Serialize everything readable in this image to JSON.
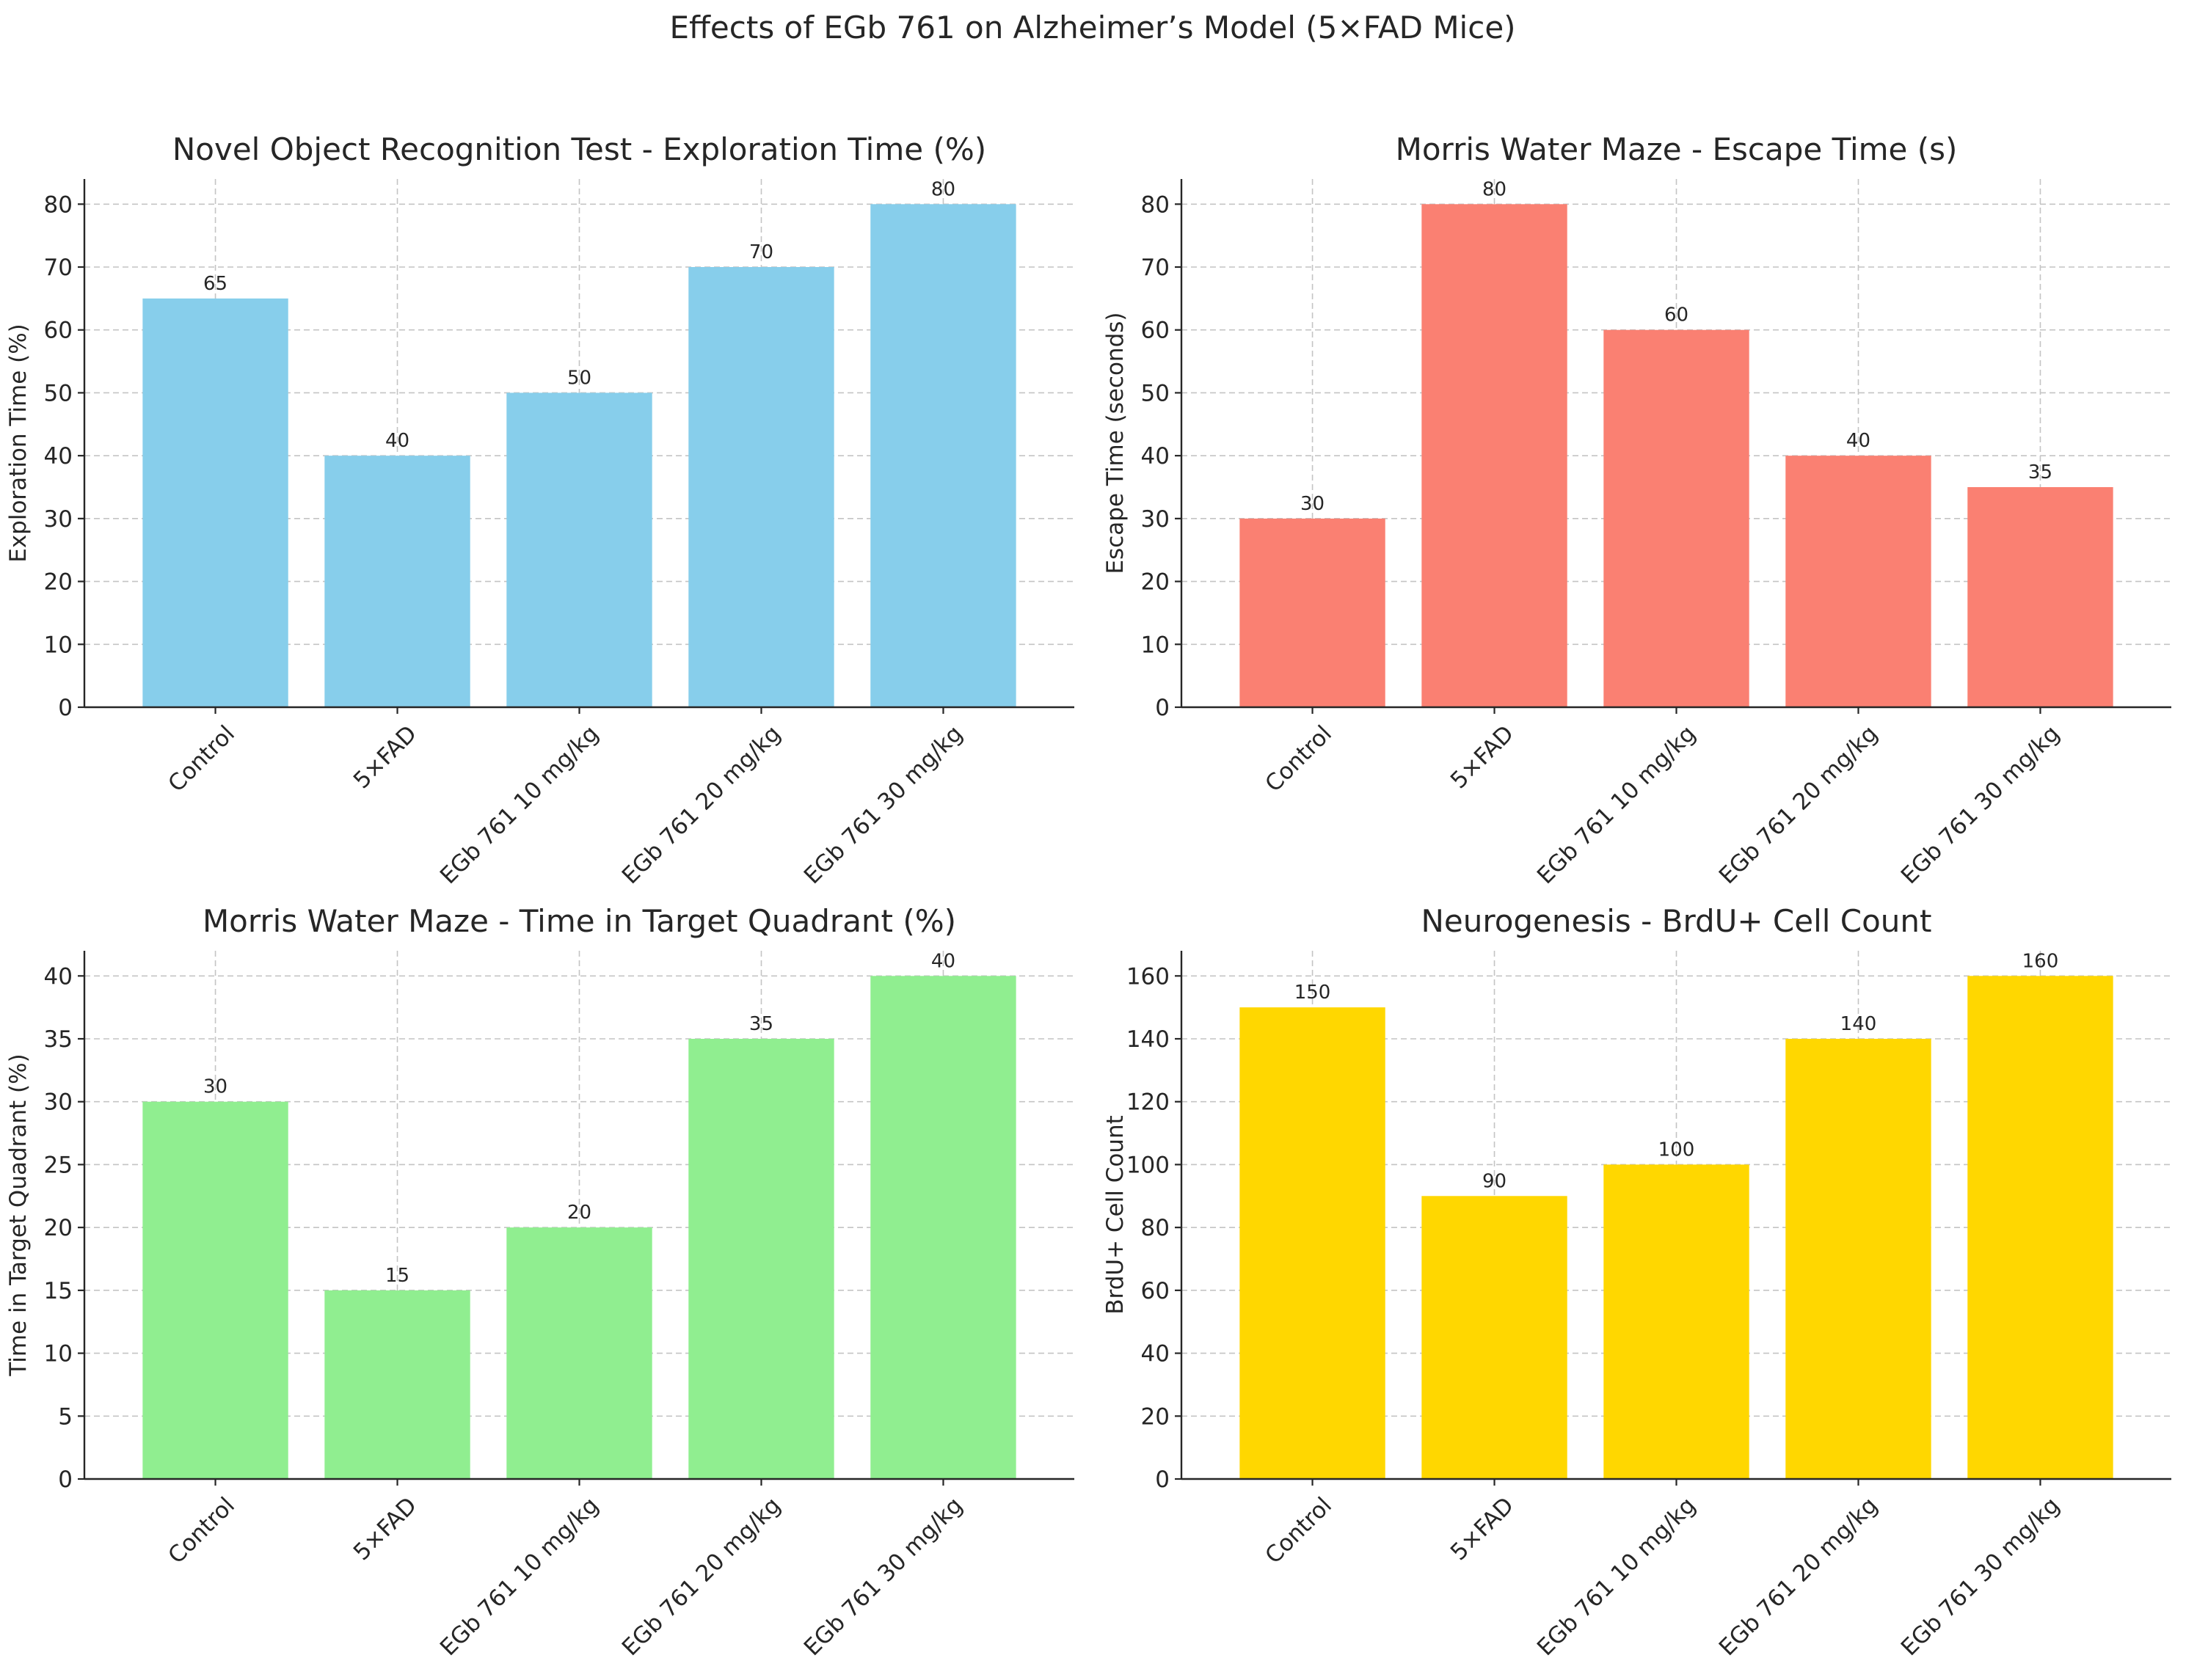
{
  "figure": {
    "suptitle": "Effects of EGb 761 on Alzheimer’s Model (5×FAD Mice)"
  },
  "chart_data": [
    {
      "type": "bar",
      "title": "Novel Object Recognition Test - Exploration Time (%)",
      "xlabel": "",
      "ylabel": "Exploration Time (%)",
      "categories": [
        "Control",
        "5×FAD",
        "EGb 761 10 mg/kg",
        "EGb 761 20 mg/kg",
        "EGb 761 30 mg/kg"
      ],
      "values": [
        65,
        40,
        50,
        70,
        80
      ],
      "ylim": [
        0,
        84
      ],
      "yticks": [
        0,
        10,
        20,
        30,
        40,
        50,
        60,
        70,
        80
      ],
      "color": "#87ceeb",
      "grid": true
    },
    {
      "type": "bar",
      "title": "Morris Water Maze - Escape Time (s)",
      "xlabel": "",
      "ylabel": "Escape Time (seconds)",
      "categories": [
        "Control",
        "5×FAD",
        "EGb 761 10 mg/kg",
        "EGb 761 20 mg/kg",
        "EGb 761 30 mg/kg"
      ],
      "values": [
        30,
        80,
        60,
        40,
        35
      ],
      "ylim": [
        0,
        84
      ],
      "yticks": [
        0,
        10,
        20,
        30,
        40,
        50,
        60,
        70,
        80
      ],
      "color": "#fa8072",
      "grid": true
    },
    {
      "type": "bar",
      "title": "Morris Water Maze - Time in Target Quadrant (%)",
      "xlabel": "",
      "ylabel": "Time in Target Quadrant (%)",
      "categories": [
        "Control",
        "5×FAD",
        "EGb 761 10 mg/kg",
        "EGb 761 20 mg/kg",
        "EGb 761 30 mg/kg"
      ],
      "values": [
        30,
        15,
        20,
        35,
        40
      ],
      "ylim": [
        0,
        42
      ],
      "yticks": [
        0,
        5,
        10,
        15,
        20,
        25,
        30,
        35,
        40
      ],
      "color": "#90ee90",
      "grid": true
    },
    {
      "type": "bar",
      "title": "Neurogenesis - BrdU+ Cell Count",
      "xlabel": "",
      "ylabel": "BrdU+ Cell Count",
      "categories": [
        "Control",
        "5×FAD",
        "EGb 761 10 mg/kg",
        "EGb 761 20 mg/kg",
        "EGb 761 30 mg/kg"
      ],
      "values": [
        150,
        90,
        100,
        140,
        160
      ],
      "ylim": [
        0,
        168
      ],
      "yticks": [
        0,
        20,
        40,
        60,
        80,
        100,
        120,
        140,
        160
      ],
      "color": "#ffd700",
      "grid": true
    }
  ]
}
